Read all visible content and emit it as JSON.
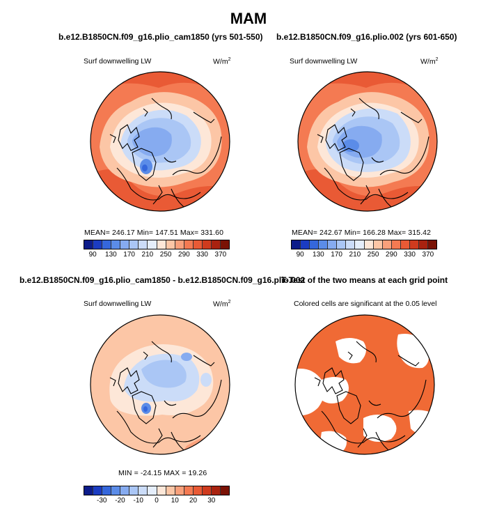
{
  "figure": {
    "title": "MAM",
    "panels": [
      {
        "title": "b.e12.B1850CN.f09_g16.plio_cam1850 (yrs 501-550)",
        "variable": "Surf downwelling LW",
        "units": "W/m",
        "units_sup": "2",
        "stats": "MEAN= 246.17   Min= 147.51   Max= 331.60"
      },
      {
        "title": "b.e12.B1850CN.f09_g16.plio.002 (yrs 601-650)",
        "variable": "Surf downwelling LW",
        "units": "W/m",
        "units_sup": "2",
        "stats": "MEAN= 242.67   Min= 166.28   Max= 315.42"
      },
      {
        "title": "b.e12.B1850CN.f09_g16.plio_cam1850 - b.e12.B1850CN.f09_g16.plio.002",
        "variable": "Surf downwelling LW",
        "units": "W/m",
        "units_sup": "2",
        "stats": "MIN = -24.15  MAX =  19.26"
      },
      {
        "title": "T-Test of the two means at each grid point",
        "variable": "Colored cells are significant at the 0.05 level"
      }
    ],
    "colorbar_abs": {
      "ticks": [
        "90",
        "130",
        "170",
        "210",
        "250",
        "290",
        "330",
        "370"
      ],
      "colors": [
        "#0d1c8a",
        "#1b3cc2",
        "#3567dc",
        "#5b8ce8",
        "#86abf0",
        "#aac6f5",
        "#cbdcf8",
        "#e5eefb",
        "#fde7d8",
        "#fcc6a6",
        "#f9a07b",
        "#f47a52",
        "#e95a35",
        "#cf3b1e",
        "#a9220f",
        "#7a1205"
      ]
    },
    "colorbar_diff": {
      "ticks": [
        "-30",
        "-20",
        "-10",
        "0",
        "10",
        "20",
        "30"
      ],
      "colors": [
        "#0d1c8a",
        "#1b3cc2",
        "#3567dc",
        "#5b8ce8",
        "#86abf0",
        "#aac6f5",
        "#cbdcf8",
        "#e5eefb",
        "#fde7d8",
        "#fcc6a6",
        "#f9a07b",
        "#f47a52",
        "#e95a35",
        "#cf3b1e",
        "#a9220f",
        "#7a1205"
      ]
    },
    "significance_color": "#f06a35"
  }
}
